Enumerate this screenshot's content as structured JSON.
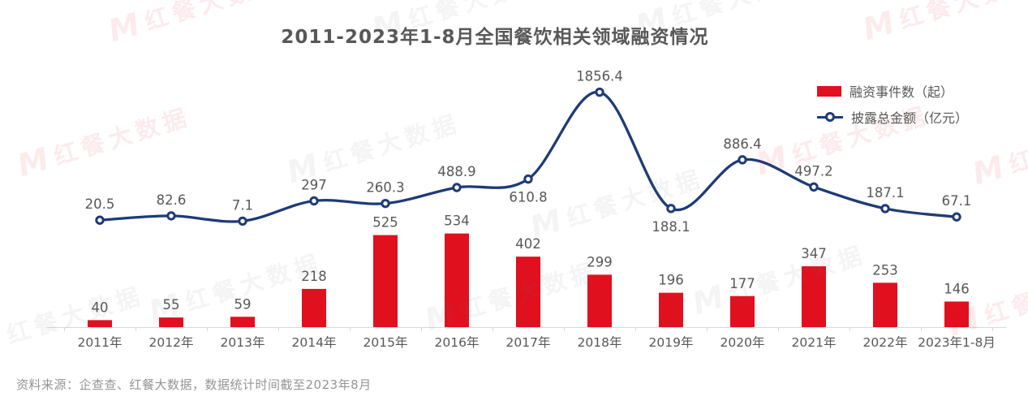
{
  "title": "2011-2023年1-8月全国餐饮相关领域融资情况",
  "legend": {
    "bar_label": "融资事件数（起）",
    "line_label": "披露总金额（亿元）"
  },
  "source_note": "资料来源：企查查、红餐大数据，数据统计时间截至2023年8月",
  "watermark": {
    "logo": "M",
    "text": "红餐大数据"
  },
  "colors": {
    "bar": "#e1101e",
    "line": "#1e3b76",
    "label_text": "#595757",
    "axis_line": "#d8d8d8",
    "source_text": "#949494",
    "watermark_red": "#e60012",
    "watermark_gray": "#6f6f6f"
  },
  "chart_data": {
    "type": "bar+line",
    "title": "2011-2023年1-8月全国餐饮相关领域融资情况",
    "categories": [
      "2011年",
      "2012年",
      "2013年",
      "2014年",
      "2015年",
      "2016年",
      "2017年",
      "2018年",
      "2019年",
      "2020年",
      "2021年",
      "2022年",
      "2023年1-8月"
    ],
    "series": [
      {
        "name": "融资事件数（起）",
        "type": "bar",
        "color": "#e1101e",
        "values": [
          40,
          55,
          59,
          218,
          525,
          534,
          402,
          299,
          196,
          177,
          347,
          253,
          146
        ]
      },
      {
        "name": "披露总金额（亿元）",
        "type": "line",
        "color": "#1e3b76",
        "smooth": true,
        "values": [
          20.5,
          82.6,
          7.1,
          297,
          260.3,
          488.9,
          610.8,
          1856.4,
          188.1,
          886.4,
          497.2,
          187.1,
          67.1
        ],
        "label_positions": [
          "above",
          "above",
          "above",
          "above",
          "above",
          "above",
          "below",
          "above",
          "below",
          "above",
          "above",
          "above",
          "above"
        ]
      }
    ],
    "xlabel": "",
    "ylabel": "",
    "axes_hidden": true,
    "value_labels_shown": true,
    "grid": false,
    "legend_position": "top-right",
    "bar_axis_implied_max": 600,
    "line_axis_implied_max": 1900
  }
}
